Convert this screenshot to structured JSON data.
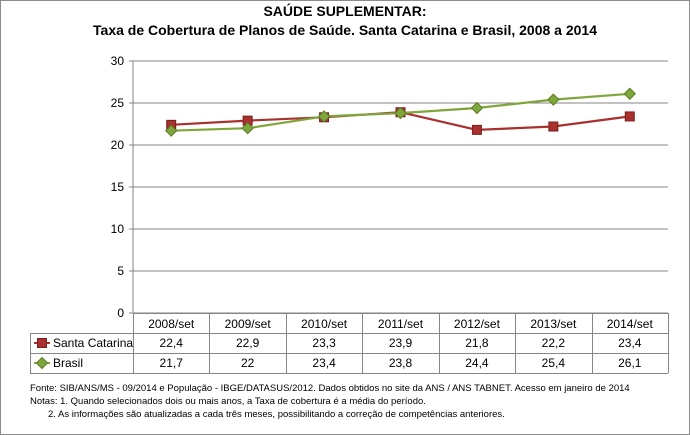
{
  "chart_data": {
    "type": "line",
    "title": "SAÚDE SUPLEMENTAR:",
    "subtitle": "Taxa de Cobertura de Planos de Saúde. Santa Catarina e Brasil, 2008 a 2014",
    "categories": [
      "2008/set",
      "2009/set",
      "2010/set",
      "2011/set",
      "2012/set",
      "2013/set",
      "2014/set"
    ],
    "series": [
      {
        "name": "Santa Catarina",
        "values": [
          22.4,
          22.9,
          23.3,
          23.9,
          21.8,
          22.2,
          23.4
        ],
        "labels": [
          "22,4",
          "22,9",
          "23,3",
          "23,9",
          "21,8",
          "22,2",
          "23,4"
        ],
        "color": "#a8302e",
        "marker": "square"
      },
      {
        "name": "Brasil",
        "values": [
          21.7,
          22,
          23.4,
          23.8,
          24.4,
          25.4,
          26.1
        ],
        "labels": [
          "21,7",
          "22",
          "23,4",
          "23,8",
          "24,4",
          "25,4",
          "26,1"
        ],
        "color": "#7ea63a",
        "marker": "diamond"
      }
    ],
    "ylim": [
      0,
      30
    ],
    "yticks": [
      0,
      5,
      10,
      15,
      20,
      25,
      30
    ],
    "grid": true,
    "legend": "data-table"
  },
  "notes": {
    "source": "Fonte: SIB/ANS/MS - 09/2014 e População - IBGE/DATASUS/2012. Dados obtidos no site da ANS / ANS TABNET. Acesso em janeiro de 2014",
    "note1": "Notas: 1. Quando selecionados dois ou mais anos, a Taxa de cobertura é a média do período.",
    "note2": "2. As informações são atualizadas a cada três meses, possibilitando a correção de competências anteriores."
  }
}
